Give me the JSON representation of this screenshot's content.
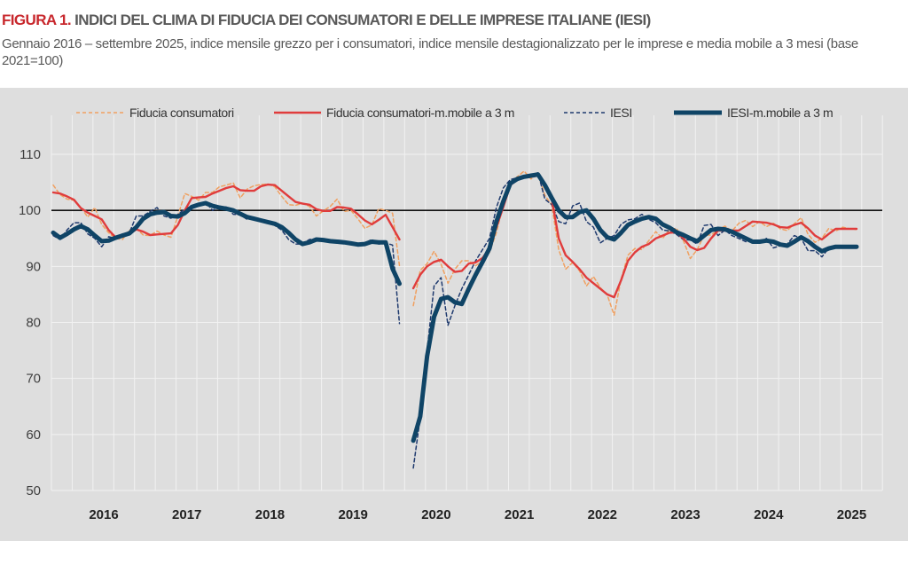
{
  "header": {
    "figure_label": "FIGURA 1.",
    "title": " INDICI DEL CLIMA DI FIDUCIA DEI CONSUMATORI E DELLE IMPRESE ITALIANE (IESI)",
    "subtitle": "Gennaio 2016 – settembre 2025, indice mensile grezzo per i consumatori, indice mensile destagionalizzato per le imprese e media mobile a 3 mesi (base 2021=100)"
  },
  "chart_data": {
    "type": "line",
    "frequency": "monthly",
    "x_range": [
      "2016-01",
      "2025-09"
    ],
    "x_tick_labels": [
      "2016",
      "2017",
      "2018",
      "2019",
      "2020",
      "2021",
      "2022",
      "2023",
      "2024",
      "2025"
    ],
    "y_tick_labels": [
      "110",
      "100",
      "90",
      "80",
      "70",
      "60",
      "50"
    ],
    "ylim": [
      50,
      110
    ],
    "reference_line": 100,
    "grid": true,
    "legend_position": "top",
    "series": [
      {
        "name": "Fiducia consumatori",
        "style": "dashed",
        "color": "#f0a060",
        "values": [
          104.5,
          102.8,
          102,
          101.8,
          100.5,
          98.8,
          100.5,
          97.5,
          96,
          95,
          94.8,
          96.5,
          96.8,
          95.6,
          95.5,
          96.3,
          95.6,
          95.2,
          99,
          103,
          102.5,
          101.8,
          103.2,
          103.2,
          104.2,
          104.5,
          104.9,
          102.2,
          103.8,
          104.4,
          104.6,
          104.7,
          104.2,
          102.5,
          101,
          100.9,
          101.3,
          100.7,
          99,
          99.9,
          100.7,
          102,
          99.8,
          100,
          98.5,
          96.8,
          97.4,
          100.3,
          100,
          99.5,
          90.1,
          null,
          83,
          89.3,
          90.5,
          92.7,
          90.4,
          87,
          89.5,
          91,
          91,
          90.1,
          91,
          92.5,
          96,
          101,
          104.8,
          106,
          107,
          105.6,
          106.5,
          102.7,
          100.9,
          93,
          89.5,
          90.7,
          89.2,
          86.5,
          88.2,
          86.2,
          84.9,
          81.3,
          87.7,
          92,
          93.2,
          93,
          94.6,
          96.2,
          95,
          96.6,
          96.8,
          94.6,
          91.4,
          93,
          95.6,
          95.6,
          96.5,
          97.2,
          96.3,
          97.7,
          98.2,
          97.1,
          98,
          97.1,
          97.7,
          96.7,
          96.4,
          97.6,
          98.7,
          95.7,
          94.3,
          95,
          96.8,
          96.3,
          97,
          96.7,
          96.6
        ]
      },
      {
        "name": "Fiducia consumatori-m.mobile a 3 m",
        "style": "solid",
        "color": "#e03c3c",
        "values": [
          103.2,
          103,
          102.5,
          101.9,
          100.4,
          99.6,
          99,
          98.4,
          96.5,
          95.2,
          95.3,
          95.8,
          96.6,
          96.2,
          95.6,
          95.7,
          95.8,
          95.9,
          97.4,
          100,
          102.2,
          102.3,
          102.4,
          103,
          103.5,
          104,
          104.3,
          103.6,
          103.5,
          103.5,
          104.3,
          104.6,
          104.5,
          103.5,
          102.5,
          101.5,
          101.2,
          101,
          100.2,
          99.9,
          99.9,
          100.6,
          100.5,
          100.3,
          99.3,
          98.2,
          97.5,
          98.3,
          99.2,
          97,
          94.8,
          null,
          86.1,
          88.5,
          90,
          90.8,
          91.2,
          90,
          89,
          89.2,
          90.5,
          90.7,
          91.5,
          93.2,
          97,
          100.6,
          104.5,
          105.5,
          105.9,
          106,
          106.2,
          104.8,
          102,
          95,
          92,
          90.8,
          89.5,
          88,
          87,
          86,
          85,
          84.5,
          87.5,
          91,
          92.5,
          93.5,
          94,
          95,
          95.5,
          96,
          96.1,
          95,
          93.5,
          92.9,
          93.3,
          95,
          96.4,
          96.4,
          96.4,
          96.4,
          97.2,
          98,
          97.9,
          97.8,
          97.5,
          97,
          96.9,
          97.4,
          97.8,
          96.8,
          95.5,
          94.8,
          95.8,
          96.7,
          96.7,
          96.7,
          96.7
        ]
      },
      {
        "name": "IESI",
        "style": "dashed",
        "color": "#1f3a6e",
        "values": [
          95.5,
          94.8,
          96.5,
          97.8,
          97.8,
          95.8,
          95,
          93.5,
          95.3,
          95,
          95.8,
          96,
          99,
          99,
          99.8,
          100.5,
          99,
          98.6,
          99.3,
          100.2,
          100.8,
          101.2,
          101.5,
          100,
          100.6,
          100.6,
          99.3,
          99.2,
          98.4,
          98.6,
          98,
          97.8,
          97.3,
          96.5,
          94.8,
          94,
          94,
          94.8,
          94.9,
          94.4,
          94.6,
          94.3,
          94.1,
          94,
          93.7,
          94.2,
          94.8,
          94,
          94.2,
          93.8,
          79.8,
          null,
          54,
          63,
          75,
          86.5,
          88,
          79.5,
          83,
          86,
          88.5,
          91,
          93,
          95,
          100.5,
          104,
          105.5,
          105.8,
          106,
          106.4,
          106.7,
          102,
          101,
          98,
          97.6,
          100.8,
          101.3,
          98,
          97,
          94.2,
          95,
          95.5,
          97.5,
          98.3,
          98.5,
          99.3,
          98.4,
          97.8,
          96.5,
          96.3,
          95.7,
          94.8,
          94.7,
          94,
          97.3,
          97.5,
          95.5,
          96.5,
          95.5,
          95,
          94.4,
          94.6,
          94.2,
          95,
          93.3,
          93.7,
          94,
          95.5,
          95,
          92.8,
          92.8,
          91.7,
          93.3,
          93.5,
          93.6,
          93.4,
          93.6
        ]
      },
      {
        "name": "IESI-m.mobile a 3 m",
        "style": "thick",
        "color": "#0f4466",
        "values": [
          96,
          95.1,
          95.8,
          96.6,
          97.2,
          96.6,
          95.5,
          94.5,
          94.6,
          95.1,
          95.5,
          95.9,
          97,
          98.5,
          99.3,
          99.6,
          99.7,
          99,
          98.9,
          99.5,
          100.6,
          101,
          101.3,
          100.8,
          100.5,
          100.3,
          100,
          99.4,
          98.8,
          98.5,
          98.2,
          97.9,
          97.6,
          97,
          96,
          94.8,
          94,
          94.3,
          94.8,
          94.7,
          94.5,
          94.4,
          94.3,
          94.1,
          93.9,
          94,
          94.4,
          94.3,
          94.3,
          89.6,
          86.9,
          null,
          58.9,
          63.2,
          74,
          81,
          84.2,
          84.5,
          83.6,
          83.3,
          86,
          88.5,
          90.8,
          93.2,
          98,
          101.6,
          104.8,
          105.6,
          106,
          106.2,
          106.4,
          104.5,
          102.2,
          100,
          98.8,
          98.8,
          99.7,
          100,
          98.5,
          96.5,
          95.2,
          94.8,
          96,
          97.4,
          98,
          98.5,
          98.8,
          98.5,
          97.5,
          96.9,
          96.1,
          95.6,
          95,
          94.5,
          95.5,
          96.5,
          96.7,
          96.6,
          96.2,
          95.6,
          95,
          94.4,
          94.4,
          94.6,
          94.4,
          93.9,
          93.7,
          94.4,
          95.2,
          94.5,
          93.5,
          92.7,
          93.2,
          93.5,
          93.5,
          93.5,
          93.5
        ]
      }
    ]
  }
}
